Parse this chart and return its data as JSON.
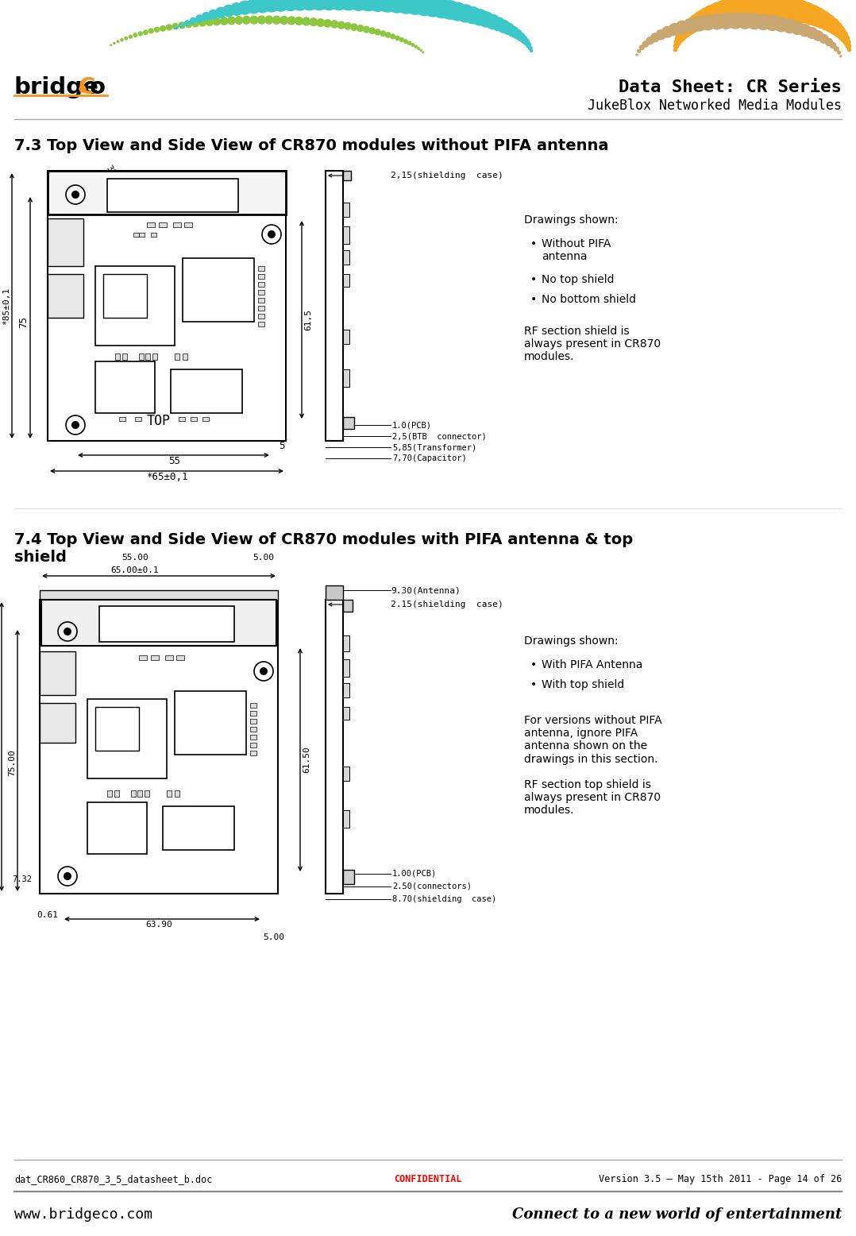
{
  "page_title_line1": "Data Sheet: CR Series",
  "page_title_line2": "JukeBlox Networked Media Modules",
  "section1_title": "7.3 Top View and Side View of CR870 modules without PIFA antenna",
  "section2_title": "7.4 Top View and Side View of CR870 modules with PIFA antenna & top\nshield",
  "drawings_shown1_header": "Drawings shown:",
  "drawings_shown1_bullets": [
    "Without PIFA\nantenna",
    "No top shield",
    "No bottom shield"
  ],
  "drawings_shown1_note": "RF section shield is\nalways present in CR870\nmodules.",
  "drawings_shown2_header": "Drawings shown:",
  "drawings_shown2_bullets": [
    "With PIFA Antenna",
    "With top shield"
  ],
  "drawings_shown2_note": "For versions without PIFA\nantenna, ignore PIFA\nantenna shown on the\ndrawings in this section.\n\nRF section top shield is\nalways present in CR870\nmodules.",
  "footer_left": "dat_CR860_CR870_3_5_datasheet_b.doc",
  "footer_center": "CONFIDENTIAL",
  "footer_right": "Version 3.5 – May 15th 2011 - Page 14 of 26",
  "footer_bottom_left": "www.bridgeco.com",
  "footer_bottom_right": "Connect to a new world of entertainment",
  "bg_color": "#ffffff"
}
